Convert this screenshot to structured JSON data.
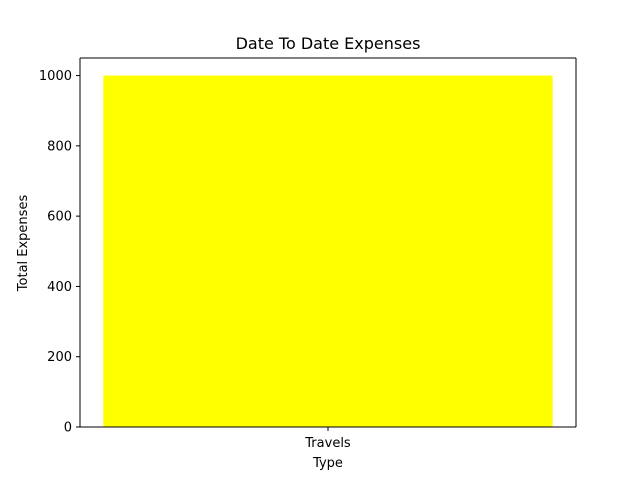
{
  "chart_data": {
    "type": "bar",
    "title": "Date To Date  Expenses",
    "xlabel": "Type",
    "ylabel": "Total Expenses",
    "categories": [
      "Travels"
    ],
    "values": [
      1000
    ],
    "ylim": [
      0,
      1050
    ],
    "yticks": [
      0,
      200,
      400,
      600,
      800,
      1000
    ],
    "bar_color": "#ffff00",
    "grid": false,
    "legend": "none"
  }
}
